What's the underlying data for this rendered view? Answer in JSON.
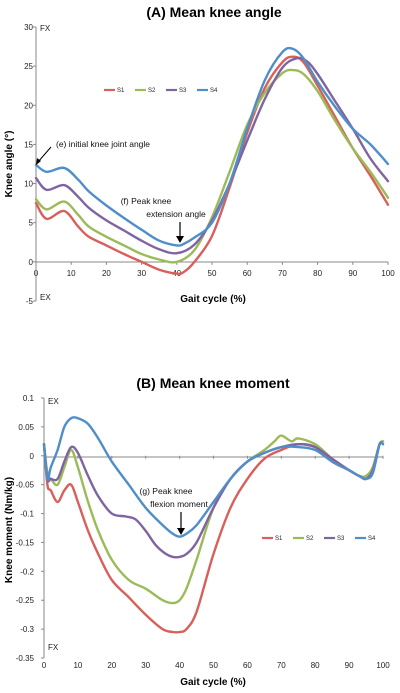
{
  "charts": [
    {
      "type": "line",
      "title": "(A) Mean knee angle",
      "xlabel": "Gait cycle (%)",
      "ylabel": "Knee angle (°)",
      "xlim": [
        0,
        100
      ],
      "ylim": [
        -5,
        30
      ],
      "x_ticks": [
        "0",
        "10",
        "20",
        "30",
        "40",
        "50",
        "60",
        "70",
        "80",
        "90",
        "100"
      ],
      "y_ticks": [
        "-5",
        "0",
        "5",
        "10",
        "15",
        "20",
        "25",
        "30"
      ],
      "top_direction_label": "FX",
      "bottom_direction_label": "EX",
      "legend_position": "top-left",
      "annotations": [
        {
          "text": "(e) initial knee joint angle",
          "x": 0,
          "y": 12.4
        },
        {
          "text": [
            "(f) Peak knee",
            "extension angle"
          ],
          "x": 41,
          "y": 2.1
        }
      ],
      "series": [
        {
          "name": "S1",
          "color": "#d95f5a",
          "x": [
            0,
            3,
            8,
            12,
            15,
            20,
            25,
            30,
            35,
            40,
            42,
            45,
            50,
            55,
            60,
            65,
            70,
            73,
            76,
            80,
            85,
            90,
            95,
            100
          ],
          "y": [
            7.5,
            5.5,
            6.5,
            4.5,
            3.2,
            2.1,
            1.0,
            0,
            -1.0,
            -1.5,
            -1.3,
            0,
            3.3,
            9.5,
            16.5,
            22.2,
            25.5,
            26.2,
            25.5,
            22.5,
            18.5,
            14.5,
            11,
            7.3
          ]
        },
        {
          "name": "S2",
          "color": "#9bbb59",
          "x": [
            0,
            3,
            8,
            12,
            15,
            20,
            25,
            30,
            35,
            40,
            45,
            50,
            55,
            60,
            65,
            70,
            73,
            76,
            80,
            85,
            90,
            95,
            100
          ],
          "y": [
            8,
            6.7,
            7.7,
            6.0,
            4.5,
            3.2,
            2.1,
            1.0,
            0.3,
            0,
            1.5,
            5.7,
            11.5,
            17.5,
            21.6,
            24.1,
            24.5,
            24.0,
            21.8,
            18,
            14.5,
            11.5,
            8.2
          ]
        },
        {
          "name": "S3",
          "color": "#8064a2",
          "x": [
            0,
            3,
            8,
            12,
            15,
            20,
            25,
            30,
            35,
            40,
            45,
            50,
            55,
            60,
            65,
            70,
            74,
            77,
            80,
            85,
            90,
            95,
            100
          ],
          "y": [
            10.7,
            9.2,
            9.8,
            8.3,
            6.9,
            5.3,
            4.0,
            2.7,
            1.6,
            1.1,
            2.2,
            5.3,
            10.0,
            15.5,
            20.8,
            24.8,
            26.0,
            25.6,
            24,
            20.5,
            17,
            13.2,
            10.3
          ]
        },
        {
          "name": "S4",
          "color": "#4f8ec9",
          "x": [
            0,
            3,
            8,
            12,
            15,
            20,
            25,
            30,
            35,
            40,
            42,
            45,
            50,
            55,
            60,
            65,
            70,
            73,
            76,
            80,
            85,
            90,
            95,
            100
          ],
          "y": [
            12.4,
            11.5,
            12,
            10.5,
            9.0,
            7.2,
            5.6,
            4.1,
            2.7,
            2.1,
            2.3,
            3.1,
            5.0,
            10.0,
            17.0,
            23.2,
            26.8,
            27.2,
            26.0,
            23.0,
            19.8,
            17.0,
            15.0,
            12.5
          ]
        }
      ]
    },
    {
      "type": "line",
      "title": "(B) Mean knee moment",
      "xlabel": "Gait cycle (%)",
      "ylabel": "Knee moment (Nm/kg)",
      "xlim": [
        0,
        100
      ],
      "ylim": [
        -0.35,
        0.1
      ],
      "x_ticks": [
        "0",
        "10",
        "20",
        "30",
        "40",
        "50",
        "60",
        "70",
        "80",
        "90",
        "100"
      ],
      "y_ticks": [
        "0.1",
        "0.05",
        "0",
        "-0.05",
        "-0.1",
        "-0.15",
        "-0.2",
        "-0.25",
        "-0.3",
        "-0.35"
      ],
      "top_direction_label": "EX",
      "bottom_direction_label": "FX",
      "legend_position": "center-right",
      "annotations": [
        {
          "text": [
            "(g) Peak knee",
            "flexion moment"
          ],
          "x": 39,
          "y": -0.142
        }
      ],
      "series": [
        {
          "name": "S1",
          "color": "#d95f5a",
          "x": [
            0,
            1,
            2,
            4,
            6,
            8,
            10,
            13,
            16,
            20,
            25,
            30,
            35,
            38,
            40,
            42,
            45,
            50,
            55,
            60,
            65,
            70,
            75,
            80,
            85,
            90,
            93,
            95,
            97,
            99,
            100
          ],
          "y": [
            0.02,
            -0.05,
            -0.06,
            -0.08,
            -0.06,
            -0.05,
            -0.08,
            -0.13,
            -0.17,
            -0.215,
            -0.245,
            -0.275,
            -0.3,
            -0.305,
            -0.305,
            -0.3,
            -0.27,
            -0.17,
            -0.09,
            -0.04,
            -0.005,
            0.01,
            0.02,
            0.015,
            -0.01,
            -0.025,
            -0.035,
            -0.035,
            -0.02,
            0.02,
            0.02
          ]
        },
        {
          "name": "S2",
          "color": "#9bbb59",
          "x": [
            0,
            1,
            2,
            4,
            6,
            8,
            10,
            13,
            16,
            20,
            25,
            30,
            35,
            38,
            40,
            42,
            45,
            50,
            55,
            60,
            65,
            68,
            70,
            73,
            75,
            80,
            85,
            90,
            93,
            95,
            97,
            99,
            100
          ],
          "y": [
            0.02,
            -0.03,
            -0.04,
            -0.05,
            -0.02,
            0.01,
            -0.02,
            -0.08,
            -0.13,
            -0.18,
            -0.215,
            -0.23,
            -0.25,
            -0.255,
            -0.25,
            -0.23,
            -0.18,
            -0.09,
            -0.04,
            -0.01,
            0.01,
            0.025,
            0.035,
            0.025,
            0.03,
            0.02,
            -0.005,
            -0.025,
            -0.035,
            -0.035,
            -0.02,
            0.02,
            0.025
          ]
        },
        {
          "name": "S3",
          "color": "#8064a2",
          "x": [
            0,
            1,
            2,
            4,
            6,
            8,
            10,
            13,
            16,
            20,
            24,
            27,
            30,
            33,
            36,
            38,
            40,
            42,
            45,
            50,
            55,
            60,
            65,
            70,
            75,
            80,
            85,
            90,
            93,
            95,
            97,
            99,
            100
          ],
          "y": [
            0.02,
            -0.04,
            -0.04,
            -0.04,
            -0.01,
            0.015,
            0.005,
            -0.035,
            -0.07,
            -0.1,
            -0.105,
            -0.11,
            -0.13,
            -0.155,
            -0.17,
            -0.175,
            -0.175,
            -0.17,
            -0.15,
            -0.09,
            -0.04,
            -0.01,
            0.005,
            0.015,
            0.02,
            0.015,
            -0.005,
            -0.025,
            -0.035,
            -0.04,
            -0.025,
            0.02,
            0.02
          ]
        },
        {
          "name": "S4",
          "color": "#4f8ec9",
          "x": [
            0,
            1,
            2,
            4,
            6,
            8,
            10,
            13,
            16,
            20,
            25,
            30,
            35,
            38,
            40,
            42,
            45,
            50,
            55,
            60,
            65,
            70,
            75,
            80,
            85,
            90,
            93,
            95,
            97,
            99,
            100
          ],
          "y": [
            0.02,
            -0.04,
            -0.02,
            0.01,
            0.05,
            0.065,
            0.065,
            0.055,
            0.03,
            -0.01,
            -0.05,
            -0.09,
            -0.12,
            -0.135,
            -0.14,
            -0.135,
            -0.12,
            -0.08,
            -0.04,
            -0.01,
            0.005,
            0.015,
            0.015,
            0.01,
            -0.01,
            -0.025,
            -0.035,
            -0.04,
            -0.03,
            0.02,
            0.02
          ]
        }
      ]
    }
  ]
}
